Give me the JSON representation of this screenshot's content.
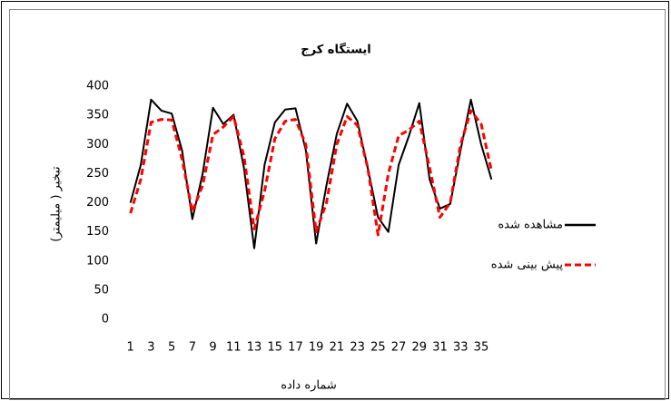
{
  "chart_data": {
    "type": "line",
    "title": "ایستگاه کرج",
    "x_label": "شماره داده",
    "y_label": "تبخیر ( میلیمتر)",
    "categories": [
      "1",
      null,
      "3",
      null,
      "5",
      null,
      "7",
      null,
      "9",
      null,
      "11",
      null,
      "13",
      null,
      "15",
      null,
      "17",
      null,
      "19",
      null,
      "21",
      null,
      "23",
      null,
      "25",
      null,
      "27",
      null,
      "29",
      null,
      "31",
      null,
      "33",
      null,
      "35",
      null
    ],
    "series": [
      {
        "name": "مشاهده شده",
        "color": "#000000",
        "line_style": "solid",
        "values": [
          200,
          265,
          377,
          358,
          353,
          290,
          172,
          250,
          363,
          335,
          351,
          260,
          122,
          265,
          338,
          360,
          362,
          290,
          130,
          230,
          318,
          370,
          340,
          260,
          175,
          150,
          265,
          315,
          371,
          240,
          190,
          198,
          290,
          377,
          300,
          240
        ]
      },
      {
        "name": "پیش بینی شده",
        "color": "#ff0000",
        "line_style": "dashed",
        "values": [
          182,
          240,
          338,
          343,
          342,
          275,
          185,
          230,
          317,
          330,
          348,
          280,
          155,
          220,
          310,
          340,
          343,
          300,
          150,
          200,
          300,
          348,
          333,
          260,
          145,
          250,
          315,
          325,
          340,
          260,
          175,
          200,
          300,
          358,
          335,
          255
        ]
      }
    ],
    "ylim": [
      0,
      400
    ],
    "yticks": [
      0,
      50,
      100,
      150,
      200,
      250,
      300,
      350,
      400
    ],
    "grid": false,
    "legend": "right"
  }
}
